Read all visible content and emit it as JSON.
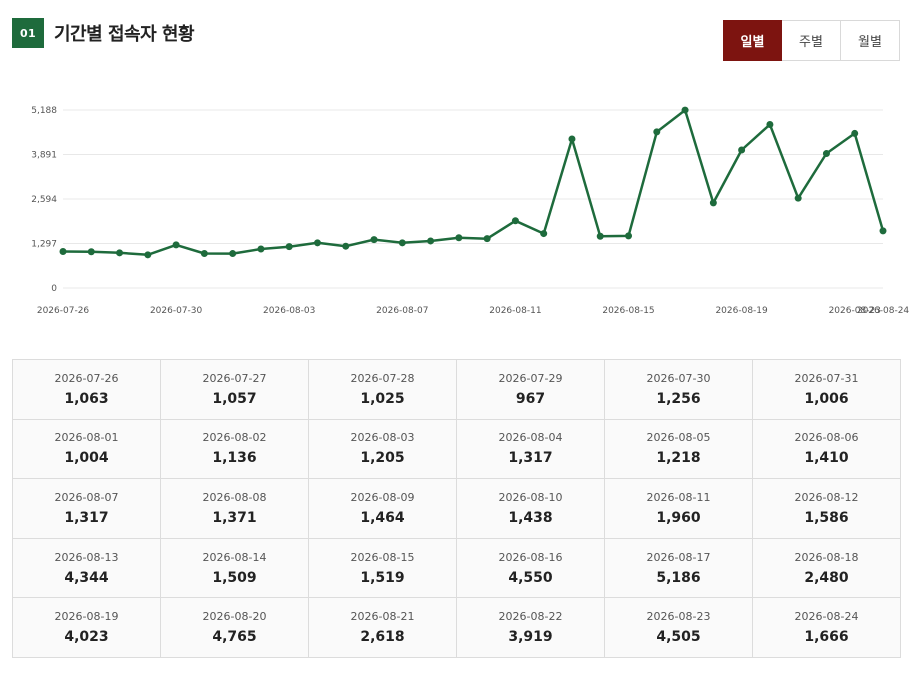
{
  "header": {
    "badge": "01",
    "title": "기간별 접속자 현황"
  },
  "tabs": [
    {
      "label": "일별",
      "active": true
    },
    {
      "label": "주별",
      "active": false
    },
    {
      "label": "월별",
      "active": false
    }
  ],
  "colors": {
    "line": "#1e6b3c",
    "badge": "#1e6b3c",
    "active_tab": "#7d1410"
  },
  "chart_data": {
    "type": "line",
    "yticks": [
      "0",
      "1,297",
      "2,594",
      "3,891",
      "5,188"
    ],
    "ylim": [
      0,
      5188
    ],
    "xticks_shown": [
      "2026-07-26",
      "2026-07-30",
      "2026-08-03",
      "2026-08-07",
      "2026-08-11",
      "2026-08-15",
      "2026-08-19",
      "2026-08-23",
      "2026-08-24"
    ],
    "x": [
      "2026-07-26",
      "2026-07-27",
      "2026-07-28",
      "2026-07-29",
      "2026-07-30",
      "2026-07-31",
      "2026-08-01",
      "2026-08-02",
      "2026-08-03",
      "2026-08-04",
      "2026-08-05",
      "2026-08-06",
      "2026-08-07",
      "2026-08-08",
      "2026-08-09",
      "2026-08-10",
      "2026-08-11",
      "2026-08-12",
      "2026-08-13",
      "2026-08-14",
      "2026-08-15",
      "2026-08-16",
      "2026-08-17",
      "2026-08-18",
      "2026-08-19",
      "2026-08-20",
      "2026-08-21",
      "2026-08-22",
      "2026-08-23",
      "2026-08-24"
    ],
    "values": [
      1063,
      1057,
      1025,
      967,
      1256,
      1006,
      1004,
      1136,
      1205,
      1317,
      1218,
      1410,
      1317,
      1371,
      1464,
      1438,
      1960,
      1586,
      4344,
      1509,
      1519,
      4550,
      5186,
      2480,
      4023,
      4765,
      2618,
      3919,
      4505,
      1666
    ],
    "grid": true
  },
  "table": [
    [
      {
        "date": "2026-07-26",
        "value": "1,063"
      },
      {
        "date": "2026-07-27",
        "value": "1,057"
      },
      {
        "date": "2026-07-28",
        "value": "1,025"
      },
      {
        "date": "2026-07-29",
        "value": "967"
      },
      {
        "date": "2026-07-30",
        "value": "1,256"
      },
      {
        "date": "2026-07-31",
        "value": "1,006"
      }
    ],
    [
      {
        "date": "2026-08-01",
        "value": "1,004"
      },
      {
        "date": "2026-08-02",
        "value": "1,136"
      },
      {
        "date": "2026-08-03",
        "value": "1,205"
      },
      {
        "date": "2026-08-04",
        "value": "1,317"
      },
      {
        "date": "2026-08-05",
        "value": "1,218"
      },
      {
        "date": "2026-08-06",
        "value": "1,410"
      }
    ],
    [
      {
        "date": "2026-08-07",
        "value": "1,317"
      },
      {
        "date": "2026-08-08",
        "value": "1,371"
      },
      {
        "date": "2026-08-09",
        "value": "1,464"
      },
      {
        "date": "2026-08-10",
        "value": "1,438"
      },
      {
        "date": "2026-08-11",
        "value": "1,960"
      },
      {
        "date": "2026-08-12",
        "value": "1,586"
      }
    ],
    [
      {
        "date": "2026-08-13",
        "value": "4,344"
      },
      {
        "date": "2026-08-14",
        "value": "1,509"
      },
      {
        "date": "2026-08-15",
        "value": "1,519"
      },
      {
        "date": "2026-08-16",
        "value": "4,550"
      },
      {
        "date": "2026-08-17",
        "value": "5,186"
      },
      {
        "date": "2026-08-18",
        "value": "2,480"
      }
    ],
    [
      {
        "date": "2026-08-19",
        "value": "4,023"
      },
      {
        "date": "2026-08-20",
        "value": "4,765"
      },
      {
        "date": "2026-08-21",
        "value": "2,618"
      },
      {
        "date": "2026-08-22",
        "value": "3,919"
      },
      {
        "date": "2026-08-23",
        "value": "4,505"
      },
      {
        "date": "2026-08-24",
        "value": "1,666"
      }
    ]
  ]
}
